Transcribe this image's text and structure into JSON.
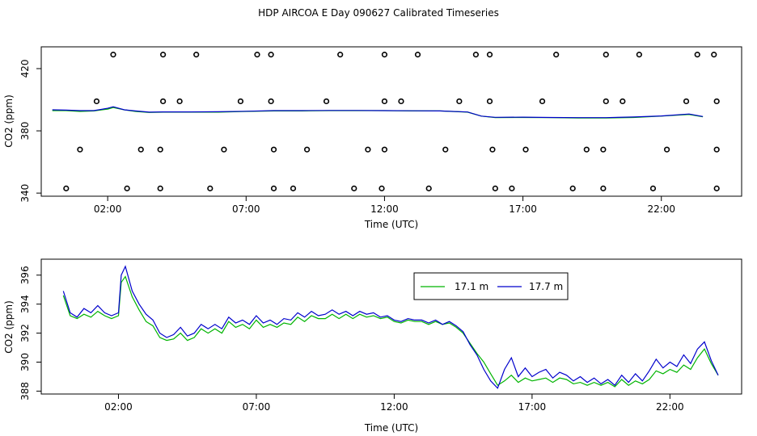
{
  "figure": {
    "title": "HDP AIRCOA E  Day 090627  Calibrated Timeseries"
  },
  "chart_data": [
    {
      "type": "scatter",
      "ylabel": "CO2 (ppm)",
      "xlabel": "Time (UTC)",
      "xlim": [
        -0.4,
        24.9
      ],
      "ylim": [
        338,
        434
      ],
      "xticks": [
        2,
        7,
        12,
        17,
        22
      ],
      "xtick_labels": [
        "02:00",
        "07:00",
        "12:00",
        "17:00",
        "22:00"
      ],
      "yticks": [
        340,
        380,
        420
      ],
      "ytick_labels": [
        "340",
        "380",
        "420"
      ],
      "grid": false,
      "calibration_points": [
        {
          "x": 0.5,
          "y": 343
        },
        {
          "x": 1.0,
          "y": 368
        },
        {
          "x": 1.6,
          "y": 399
        },
        {
          "x": 2.2,
          "y": 429
        },
        {
          "x": 2.7,
          "y": 343
        },
        {
          "x": 3.2,
          "y": 368
        },
        {
          "x": 3.9,
          "y": 343
        },
        {
          "x": 3.9,
          "y": 368
        },
        {
          "x": 4.0,
          "y": 399
        },
        {
          "x": 4.0,
          "y": 429
        },
        {
          "x": 4.6,
          "y": 399
        },
        {
          "x": 5.2,
          "y": 429
        },
        {
          "x": 5.7,
          "y": 343
        },
        {
          "x": 6.2,
          "y": 368
        },
        {
          "x": 6.8,
          "y": 399
        },
        {
          "x": 7.4,
          "y": 429
        },
        {
          "x": 7.9,
          "y": 429
        },
        {
          "x": 7.9,
          "y": 399
        },
        {
          "x": 8.0,
          "y": 368
        },
        {
          "x": 8.0,
          "y": 343
        },
        {
          "x": 8.7,
          "y": 343
        },
        {
          "x": 9.2,
          "y": 368
        },
        {
          "x": 9.9,
          "y": 399
        },
        {
          "x": 10.4,
          "y": 429
        },
        {
          "x": 10.9,
          "y": 343
        },
        {
          "x": 11.4,
          "y": 368
        },
        {
          "x": 11.9,
          "y": 343
        },
        {
          "x": 12.0,
          "y": 368
        },
        {
          "x": 12.0,
          "y": 399
        },
        {
          "x": 12.0,
          "y": 429
        },
        {
          "x": 12.6,
          "y": 399
        },
        {
          "x": 13.2,
          "y": 429
        },
        {
          "x": 13.6,
          "y": 343
        },
        {
          "x": 14.2,
          "y": 368
        },
        {
          "x": 14.7,
          "y": 399
        },
        {
          "x": 15.3,
          "y": 429
        },
        {
          "x": 15.8,
          "y": 429
        },
        {
          "x": 15.8,
          "y": 399
        },
        {
          "x": 15.9,
          "y": 368
        },
        {
          "x": 16.0,
          "y": 343
        },
        {
          "x": 16.6,
          "y": 343
        },
        {
          "x": 17.1,
          "y": 368
        },
        {
          "x": 17.7,
          "y": 399
        },
        {
          "x": 18.2,
          "y": 429
        },
        {
          "x": 18.8,
          "y": 343
        },
        {
          "x": 19.3,
          "y": 368
        },
        {
          "x": 19.9,
          "y": 343
        },
        {
          "x": 19.9,
          "y": 368
        },
        {
          "x": 20.0,
          "y": 399
        },
        {
          "x": 20.0,
          "y": 429
        },
        {
          "x": 20.6,
          "y": 399
        },
        {
          "x": 21.2,
          "y": 429
        },
        {
          "x": 21.7,
          "y": 343
        },
        {
          "x": 22.2,
          "y": 368
        },
        {
          "x": 22.9,
          "y": 399
        },
        {
          "x": 23.3,
          "y": 429
        },
        {
          "x": 23.9,
          "y": 429
        },
        {
          "x": 24.0,
          "y": 399
        },
        {
          "x": 24.0,
          "y": 368
        },
        {
          "x": 24.0,
          "y": 343
        }
      ],
      "line_x": [
        0,
        0.5,
        1,
        1.5,
        2,
        2.2,
        2.6,
        3,
        3.5,
        4,
        5,
        6,
        7,
        8,
        9,
        10,
        11,
        12,
        13,
        14,
        15,
        15.5,
        16,
        17,
        18,
        19,
        20,
        21,
        22,
        23,
        23.5
      ],
      "line_series": [
        {
          "color": "#00b400",
          "values": [
            393,
            393,
            392.5,
            392.8,
            394,
            395,
            393.5,
            392.5,
            391.8,
            392,
            392,
            392,
            392.5,
            392.8,
            392.8,
            393,
            393,
            393,
            392.8,
            392.8,
            392,
            389.5,
            388.5,
            388.6,
            388.5,
            388.3,
            388.3,
            388.6,
            389.5,
            390.5,
            389
          ]
        },
        {
          "color": "#0000cc",
          "values": [
            393.5,
            393.3,
            393,
            393,
            394.5,
            395.5,
            393.5,
            392.8,
            392,
            392.2,
            392.2,
            392.3,
            392.6,
            393,
            393,
            393.1,
            393.1,
            393,
            392.9,
            392.8,
            392.1,
            389.5,
            388.7,
            388.8,
            388.6,
            388.5,
            388.5,
            388.9,
            389.6,
            390.8,
            389.2
          ]
        }
      ]
    },
    {
      "type": "line",
      "ylabel": "CO2 (ppm)",
      "xlabel": "Time (UTC)",
      "xlim": [
        -0.8,
        24.6
      ],
      "ylim": [
        387.8,
        397.1
      ],
      "xticks": [
        2,
        7,
        12,
        17,
        22
      ],
      "xtick_labels": [
        "02:00",
        "07:00",
        "12:00",
        "17:00",
        "22:00"
      ],
      "yticks": [
        388,
        390,
        392,
        394,
        396
      ],
      "ytick_labels": [
        "388",
        "390",
        "392",
        "394",
        "396"
      ],
      "grid": false,
      "legend": {
        "position": "top-right"
      },
      "x": [
        0,
        0.25,
        0.5,
        0.75,
        1.0,
        1.25,
        1.5,
        1.75,
        2.0,
        2.1,
        2.25,
        2.5,
        2.75,
        3.0,
        3.25,
        3.5,
        3.75,
        4.0,
        4.25,
        4.5,
        4.75,
        5.0,
        5.25,
        5.5,
        5.75,
        6.0,
        6.25,
        6.5,
        6.75,
        7.0,
        7.25,
        7.5,
        7.75,
        8.0,
        8.25,
        8.5,
        8.75,
        9.0,
        9.25,
        9.5,
        9.75,
        10.0,
        10.25,
        10.5,
        10.75,
        11.0,
        11.25,
        11.5,
        11.75,
        12.0,
        12.25,
        12.5,
        12.75,
        13.0,
        13.25,
        13.5,
        13.75,
        14.0,
        14.25,
        14.5,
        14.75,
        15.0,
        15.25,
        15.5,
        15.75,
        16.0,
        16.25,
        16.5,
        16.75,
        17.0,
        17.25,
        17.5,
        17.75,
        18.0,
        18.25,
        18.5,
        18.75,
        19.0,
        19.25,
        19.5,
        19.75,
        20.0,
        20.25,
        20.5,
        20.75,
        21.0,
        21.25,
        21.5,
        21.75,
        22.0,
        22.25,
        22.5,
        22.75,
        23.0,
        23.25,
        23.5,
        23.75
      ],
      "series": [
        {
          "name": "17.1 m",
          "color": "#00b400",
          "values": [
            394.6,
            393.2,
            393.0,
            393.3,
            393.1,
            393.5,
            393.2,
            393.0,
            393.2,
            395.5,
            395.9,
            394.5,
            393.6,
            392.8,
            392.5,
            391.7,
            391.5,
            391.6,
            392.0,
            391.5,
            391.7,
            392.3,
            392.0,
            392.3,
            392.0,
            392.8,
            392.4,
            392.6,
            392.3,
            392.9,
            392.4,
            392.6,
            392.4,
            392.7,
            392.6,
            393.1,
            392.8,
            393.2,
            393.0,
            393.0,
            393.3,
            393.0,
            393.3,
            393.0,
            393.3,
            393.1,
            393.2,
            393.0,
            393.1,
            392.8,
            392.7,
            392.9,
            392.8,
            392.8,
            392.6,
            392.8,
            392.6,
            392.7,
            392.4,
            392.0,
            391.3,
            390.6,
            390.0,
            389.2,
            388.4,
            388.7,
            389.1,
            388.6,
            388.9,
            388.7,
            388.8,
            388.9,
            388.6,
            388.9,
            388.8,
            388.5,
            388.6,
            388.4,
            388.6,
            388.4,
            388.6,
            388.3,
            388.8,
            388.4,
            388.7,
            388.5,
            388.8,
            389.4,
            389.2,
            389.5,
            389.3,
            389.8,
            389.5,
            390.3,
            390.9,
            389.9,
            389.1
          ]
        },
        {
          "name": "17.7 m",
          "color": "#0000cc",
          "values": [
            394.9,
            393.4,
            393.1,
            393.7,
            393.4,
            393.9,
            393.4,
            393.2,
            393.4,
            396.0,
            396.6,
            394.9,
            394.0,
            393.3,
            392.9,
            392.0,
            391.7,
            391.9,
            392.4,
            391.8,
            392.0,
            392.6,
            392.3,
            392.6,
            392.3,
            393.1,
            392.7,
            392.9,
            392.6,
            393.2,
            392.7,
            392.9,
            392.6,
            393.0,
            392.9,
            393.4,
            393.1,
            393.5,
            393.2,
            393.3,
            393.6,
            393.3,
            393.5,
            393.2,
            393.5,
            393.3,
            393.4,
            393.1,
            393.2,
            392.9,
            392.8,
            393.0,
            392.9,
            392.9,
            392.7,
            392.9,
            392.6,
            392.8,
            392.5,
            392.1,
            391.2,
            390.5,
            389.5,
            388.7,
            388.2,
            389.5,
            390.3,
            389.0,
            389.6,
            389.0,
            389.3,
            389.5,
            388.9,
            389.3,
            389.1,
            388.7,
            389.0,
            388.6,
            388.9,
            388.5,
            388.8,
            388.4,
            389.1,
            388.6,
            389.2,
            388.7,
            389.4,
            390.2,
            389.6,
            390.0,
            389.7,
            390.5,
            389.9,
            390.9,
            391.4,
            390.1,
            389.1
          ]
        }
      ]
    }
  ]
}
